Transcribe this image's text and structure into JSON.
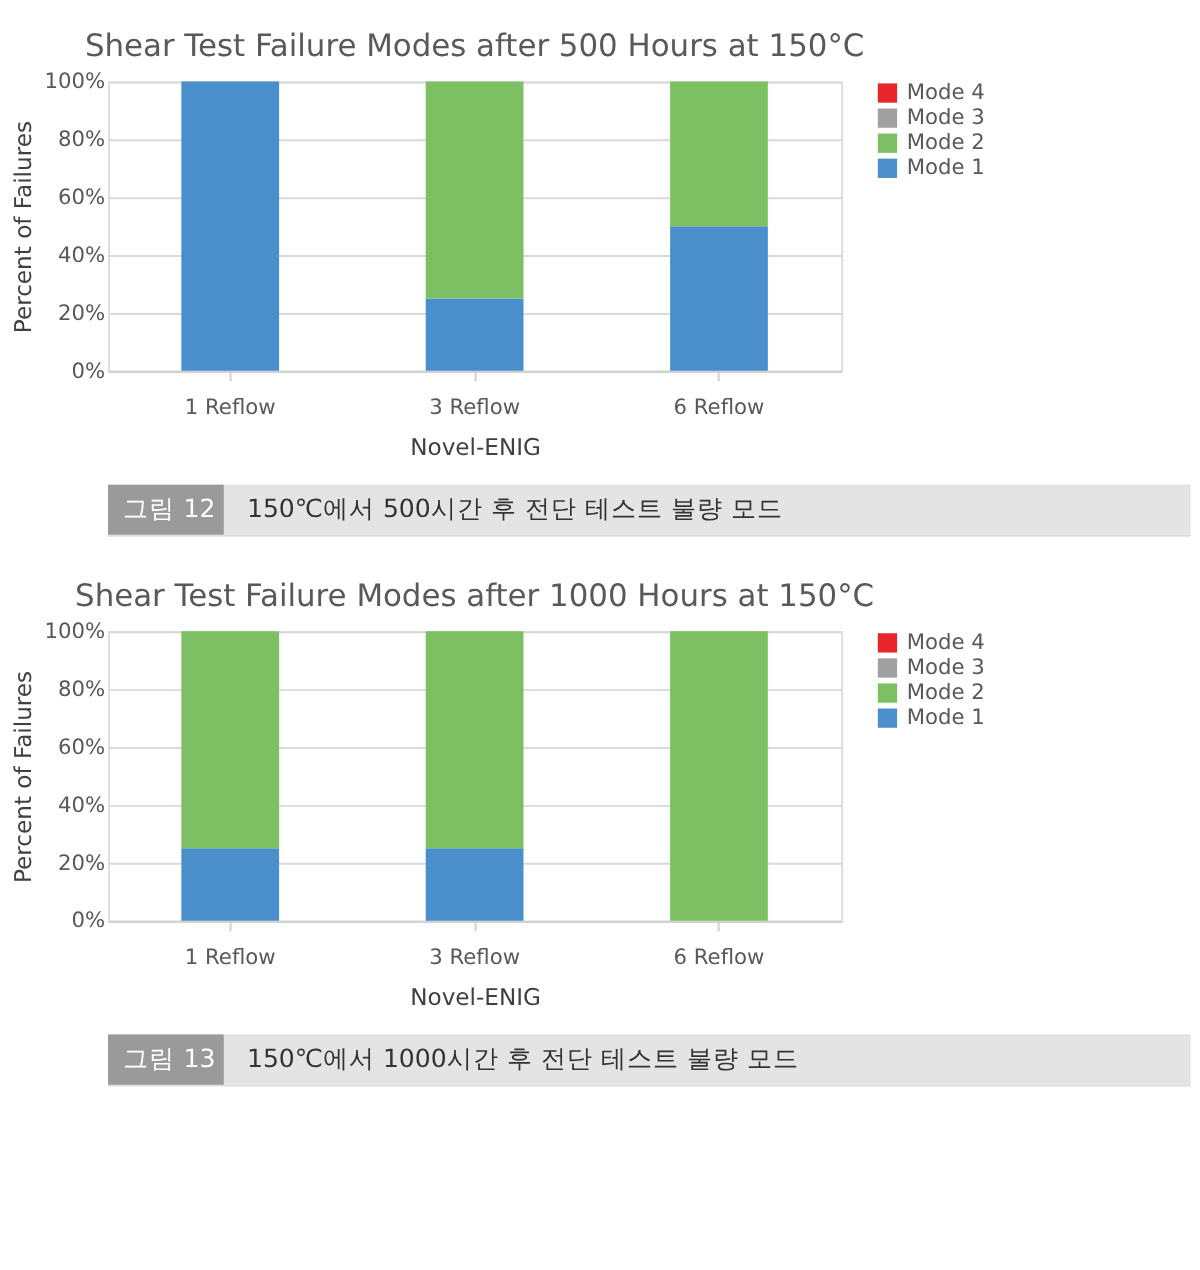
{
  "chart_data": [
    {
      "type": "bar",
      "stacked": true,
      "title": "Shear Test Failure Modes after 500 Hours at 150°C",
      "xlabel": "Novel-ENIG",
      "ylabel": "Percent of Failures",
      "categories": [
        "1 Reflow",
        "3 Reflow",
        "6 Reflow"
      ],
      "series": [
        {
          "name": "Mode 1",
          "color": "#4a8ecc",
          "values": [
            100,
            25,
            50
          ]
        },
        {
          "name": "Mode 2",
          "color": "#7dc063",
          "values": [
            0,
            75,
            50
          ]
        },
        {
          "name": "Mode 3",
          "color": "#a0a0a0",
          "values": [
            0,
            0,
            0
          ]
        },
        {
          "name": "Mode 4",
          "color": "#e8252b",
          "values": [
            0,
            0,
            0
          ]
        }
      ],
      "ylim": [
        0,
        100
      ],
      "yticks": [
        {
          "value": 0,
          "label": "0%"
        },
        {
          "value": 20,
          "label": "20%"
        },
        {
          "value": 40,
          "label": "40%"
        },
        {
          "value": 60,
          "label": "60%"
        },
        {
          "value": 80,
          "label": "80%"
        },
        {
          "value": 100,
          "label": "100%"
        }
      ],
      "grid": "y",
      "legend": "right",
      "annotations": [
        "그림 12",
        "150℃에서 500시간 후 전단 테스트 불량 모드"
      ]
    },
    {
      "type": "bar",
      "stacked": true,
      "title": "Shear Test Failure Modes after 1000 Hours at 150°C",
      "xlabel": "Novel-ENIG",
      "ylabel": "Percent of Failures",
      "categories": [
        "1 Reflow",
        "3 Reflow",
        "6 Reflow"
      ],
      "series": [
        {
          "name": "Mode 1",
          "color": "#4a8ecc",
          "values": [
            25,
            25,
            0
          ]
        },
        {
          "name": "Mode 2",
          "color": "#7dc063",
          "values": [
            75,
            75,
            100
          ]
        },
        {
          "name": "Mode 3",
          "color": "#a0a0a0",
          "values": [
            0,
            0,
            0
          ]
        },
        {
          "name": "Mode 4",
          "color": "#e8252b",
          "values": [
            0,
            0,
            0
          ]
        }
      ],
      "ylim": [
        0,
        100
      ],
      "yticks": [
        {
          "value": 0,
          "label": "0%"
        },
        {
          "value": 20,
          "label": "20%"
        },
        {
          "value": 40,
          "label": "40%"
        },
        {
          "value": 60,
          "label": "60%"
        },
        {
          "value": 80,
          "label": "80%"
        },
        {
          "value": 100,
          "label": "100%"
        }
      ],
      "grid": "y",
      "legend": "right",
      "annotations": [
        "그림 13",
        "150℃에서 1000시간 후 전단 테스트 불량 모드"
      ]
    }
  ]
}
